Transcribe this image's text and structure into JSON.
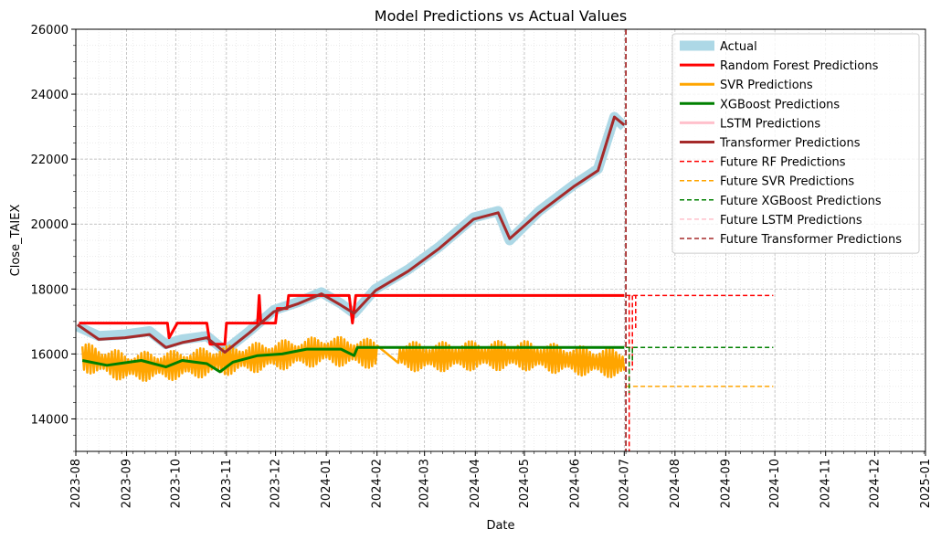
{
  "chart_data": {
    "type": "line",
    "title": "Model Predictions vs Actual Values",
    "xlabel": "Date",
    "ylabel": "Close_TAIEX",
    "ylim": [
      13000,
      26000
    ],
    "xlim": [
      "2023-08-01",
      "2025-01-01"
    ],
    "y_ticks": [
      14000,
      16000,
      18000,
      20000,
      22000,
      24000,
      26000
    ],
    "x_ticks": [
      "2023-08",
      "2023-09",
      "2023-10",
      "2023-11",
      "2023-12",
      "2024-01",
      "2024-02",
      "2024-03",
      "2024-04",
      "2024-05",
      "2024-06",
      "2024-07",
      "2024-08",
      "2024-09",
      "2024-10",
      "2024-11",
      "2024-12",
      "2025-01"
    ],
    "grid": true,
    "legend_position": "top-right",
    "vline_date": "2024-07-02",
    "series": [
      {
        "name": "Actual",
        "color": "#add8e6",
        "style": "solid",
        "width": "wide",
        "points": [
          [
            "2023-08-02",
            16850
          ],
          [
            "2023-08-15",
            16550
          ],
          [
            "2023-08-31",
            16600
          ],
          [
            "2023-09-15",
            16700
          ],
          [
            "2023-09-25",
            16300
          ],
          [
            "2023-10-05",
            16450
          ],
          [
            "2023-10-20",
            16550
          ],
          [
            "2023-10-31",
            16100
          ],
          [
            "2023-11-15",
            16700
          ],
          [
            "2023-11-30",
            17350
          ],
          [
            "2023-12-15",
            17600
          ],
          [
            "2023-12-29",
            17900
          ],
          [
            "2024-01-10",
            17550
          ],
          [
            "2024-01-18",
            17250
          ],
          [
            "2024-01-31",
            18000
          ],
          [
            "2024-02-20",
            18600
          ],
          [
            "2024-03-10",
            19300
          ],
          [
            "2024-03-31",
            20200
          ],
          [
            "2024-04-15",
            20400
          ],
          [
            "2024-04-22",
            19500
          ],
          [
            "2024-05-10",
            20400
          ],
          [
            "2024-05-31",
            21200
          ],
          [
            "2024-06-15",
            21700
          ],
          [
            "2024-06-25",
            23300
          ],
          [
            "2024-07-01",
            23000
          ]
        ]
      },
      {
        "name": "Random Forest Predictions",
        "color": "#ff0000",
        "style": "solid",
        "width": "normal",
        "points": [
          [
            "2023-08-03",
            16950
          ],
          [
            "2023-08-17",
            16950
          ],
          [
            "2023-09-26",
            16950
          ],
          [
            "2023-09-27",
            16500
          ],
          [
            "2023-10-02",
            16950
          ],
          [
            "2023-10-20",
            16950
          ],
          [
            "2023-10-22",
            16300
          ],
          [
            "2023-10-31",
            16300
          ],
          [
            "2023-11-01",
            16950
          ],
          [
            "2023-11-20",
            16950
          ],
          [
            "2023-11-21",
            17800
          ],
          [
            "2023-11-22",
            16950
          ],
          [
            "2023-12-01",
            16950
          ],
          [
            "2023-12-02",
            17400
          ],
          [
            "2023-12-08",
            17400
          ],
          [
            "2023-12-09",
            17800
          ],
          [
            "2024-01-15",
            17800
          ],
          [
            "2024-01-17",
            16950
          ],
          [
            "2024-01-19",
            17800
          ],
          [
            "2024-07-01",
            17800
          ]
        ]
      },
      {
        "name": "SVR Predictions",
        "color": "#ffa500",
        "style": "solid",
        "width": "normal",
        "points": [
          [
            "2023-08-05",
            15900
          ],
          [
            "2023-09-01",
            15600
          ],
          [
            "2023-10-01",
            15650
          ],
          [
            "2023-11-01",
            15800
          ],
          [
            "2023-12-01",
            15950
          ],
          [
            "2024-01-01",
            16100
          ],
          [
            "2024-02-01",
            16000
          ],
          [
            "2024-03-01",
            15900
          ],
          [
            "2024-04-01",
            15950
          ],
          [
            "2024-05-01",
            15950
          ],
          [
            "2024-06-01",
            15800
          ],
          [
            "2024-07-01",
            15700
          ]
        ]
      },
      {
        "name": "XGBoost Predictions",
        "color": "#008000",
        "style": "solid",
        "width": "normal",
        "points": [
          [
            "2023-08-05",
            15800
          ],
          [
            "2023-08-20",
            15650
          ],
          [
            "2023-09-10",
            15800
          ],
          [
            "2023-09-25",
            15600
          ],
          [
            "2023-10-05",
            15800
          ],
          [
            "2023-10-20",
            15700
          ],
          [
            "2023-10-28",
            15450
          ],
          [
            "2023-11-05",
            15750
          ],
          [
            "2023-11-20",
            15950
          ],
          [
            "2023-12-05",
            16000
          ],
          [
            "2023-12-20",
            16150
          ],
          [
            "2024-01-10",
            16150
          ],
          [
            "2024-01-18",
            15950
          ],
          [
            "2024-01-20",
            16200
          ],
          [
            "2024-07-01",
            16200
          ]
        ]
      },
      {
        "name": "LSTM Predictions",
        "color": "#ffc0cb",
        "style": "solid",
        "width": "normal",
        "points": []
      },
      {
        "name": "Transformer Predictions",
        "color": "#a52a2a",
        "style": "solid",
        "width": "normal",
        "points": [
          [
            "2023-08-02",
            16900
          ],
          [
            "2023-08-15",
            16450
          ],
          [
            "2023-08-31",
            16500
          ],
          [
            "2023-09-15",
            16600
          ],
          [
            "2023-09-25",
            16200
          ],
          [
            "2023-10-05",
            16350
          ],
          [
            "2023-10-20",
            16500
          ],
          [
            "2023-10-31",
            16050
          ],
          [
            "2023-11-15",
            16650
          ],
          [
            "2023-11-30",
            17300
          ],
          [
            "2023-12-15",
            17550
          ],
          [
            "2023-12-29",
            17850
          ],
          [
            "2024-01-10",
            17500
          ],
          [
            "2024-01-18",
            17250
          ],
          [
            "2024-01-31",
            17950
          ],
          [
            "2024-02-20",
            18550
          ],
          [
            "2024-03-10",
            19250
          ],
          [
            "2024-03-31",
            20150
          ],
          [
            "2024-04-15",
            20350
          ],
          [
            "2024-04-22",
            19550
          ],
          [
            "2024-05-10",
            20350
          ],
          [
            "2024-05-31",
            21150
          ],
          [
            "2024-06-15",
            21650
          ],
          [
            "2024-06-25",
            23300
          ],
          [
            "2024-07-01",
            23050
          ]
        ]
      },
      {
        "name": "Future RF Predictions",
        "color": "#ff0000",
        "style": "dashed",
        "width": "thin",
        "points": [
          [
            "2024-07-02",
            17800
          ],
          [
            "2024-09-30",
            17800
          ]
        ]
      },
      {
        "name": "Future SVR Predictions",
        "color": "#ffa500",
        "style": "dashed",
        "width": "thin",
        "points": [
          [
            "2024-07-02",
            15000
          ],
          [
            "2024-09-30",
            15000
          ]
        ]
      },
      {
        "name": "Future XGBoost Predictions",
        "color": "#008000",
        "style": "dashed",
        "width": "thin",
        "points": [
          [
            "2024-07-02",
            16200
          ],
          [
            "2024-09-30",
            16200
          ]
        ]
      },
      {
        "name": "Future LSTM Predictions",
        "color": "#ffc0cb",
        "style": "dashed",
        "width": "thin",
        "points": []
      },
      {
        "name": "Future Transformer Predictions",
        "color": "#a52a2a",
        "style": "dashed",
        "width": "thin",
        "points": []
      }
    ]
  }
}
